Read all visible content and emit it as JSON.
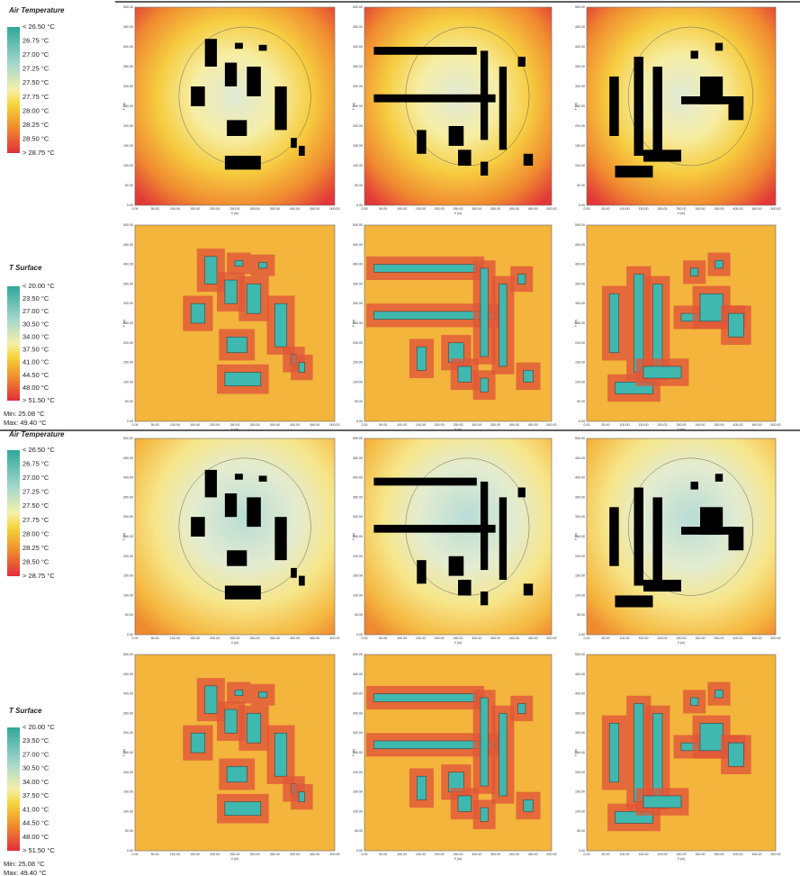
{
  "legends": [
    {
      "title": "Air Temperature",
      "labels": [
        "< 26.50 °C",
        "26.75 °C",
        "27.00 °C",
        "27.25 °C",
        "27.50 °C",
        "27.75 °C",
        "28.00 °C",
        "28.25 °C",
        "28.50 °C",
        "> 28.75 °C"
      ]
    },
    {
      "title": "T Surface",
      "labels": [
        "< 20.00 °C",
        "23.50 °C",
        "27.00 °C",
        "30.50 °C",
        "34.00 °C",
        "37.50 °C",
        "41.00 °C",
        "44.50 °C",
        "48.00 °C",
        "> 51.50 °C"
      ],
      "min": "Min: 25.08 °C",
      "max": "Max: 49.40 °C"
    },
    {
      "title": "Air Temperature",
      "labels": [
        "< 26.50 °C",
        "26.75 °C",
        "27.00 °C",
        "27.25 °C",
        "27.50 °C",
        "27.75 °C",
        "28.00 °C",
        "28.25 °C",
        "28.50 °C",
        "> 28.75 °C"
      ]
    },
    {
      "title": "T Surface",
      "labels": [
        "< 20.00 °C",
        "23.50 °C",
        "27.00 °C",
        "30.50 °C",
        "34.00 °C",
        "37.50 °C",
        "41.00 °C",
        "44.50 °C",
        "48.00 °C",
        "> 51.50 °C"
      ],
      "min": "Min: 25.08 °C",
      "max": "Max: 49.40 °C"
    }
  ],
  "axes": {
    "x_label": "X (m)",
    "y_label": "Y (m)",
    "x_ticks": [
      "0.00",
      "50.00",
      "100.00",
      "150.00",
      "200.00",
      "250.00",
      "300.00",
      "350.00",
      "400.00",
      "450.00",
      "500.00"
    ],
    "y_ticks": [
      "0.00",
      "50.00",
      "100.00",
      "150.00",
      "200.00",
      "250.00",
      "300.00",
      "350.00",
      "400.00",
      "450.00",
      "500.00"
    ]
  }
}
